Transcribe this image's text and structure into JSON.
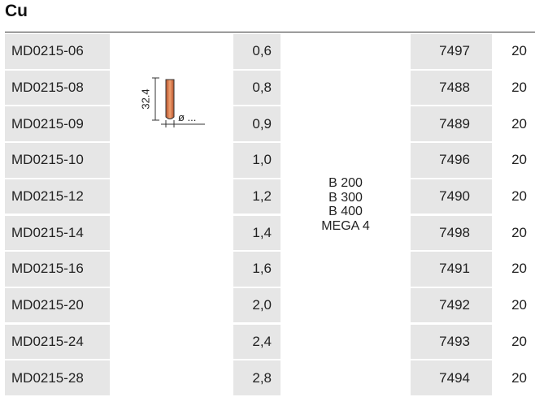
{
  "title": "Cu",
  "table": {
    "rows": [
      [
        "MD0215-06",
        "0,6",
        "7497",
        "20"
      ],
      [
        "MD0215-08",
        "0,8",
        "7488",
        "20"
      ],
      [
        "MD0215-09",
        "0,9",
        "7489",
        "20"
      ],
      [
        "MD0215-10",
        "1,0",
        "7496",
        "20"
      ],
      [
        "MD0215-12",
        "1,2",
        "7490",
        "20"
      ],
      [
        "MD0215-14",
        "1,4",
        "7498",
        "20"
      ],
      [
        "MD0215-16",
        "1,6",
        "7491",
        "20"
      ],
      [
        "MD0215-20",
        "2,0",
        "7492",
        "20"
      ],
      [
        "MD0215-24",
        "2,4",
        "7493",
        "20"
      ],
      [
        "MD0215-28",
        "2,8",
        "7494",
        "20"
      ]
    ],
    "models": [
      "B 200",
      "B 300",
      "B 400",
      "MEGA 4"
    ]
  },
  "diagram": {
    "length_label": "32.4",
    "diameter_label": "ø ..."
  }
}
